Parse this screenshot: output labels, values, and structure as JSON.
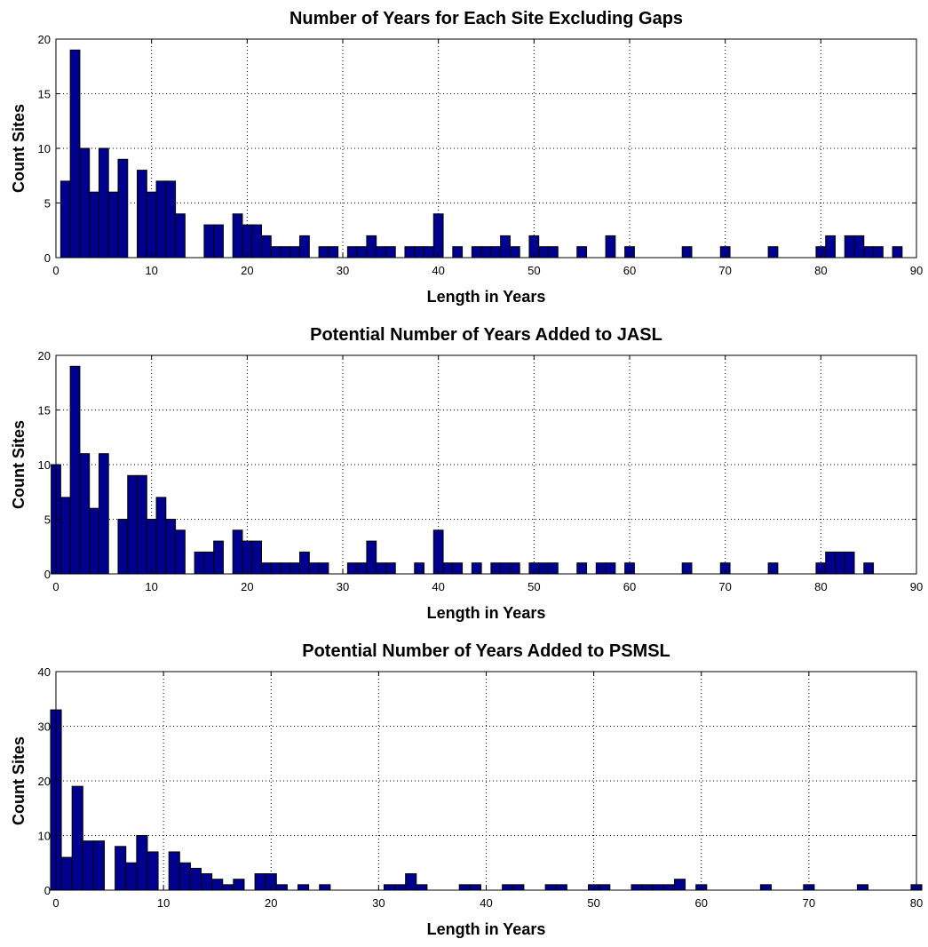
{
  "chart_data": [
    {
      "type": "bar",
      "title": "Number of Years for Each Site Excluding Gaps",
      "xlabel": "Length in Years",
      "ylabel": "Count Sites",
      "xlim": [
        0,
        90
      ],
      "ylim": [
        0,
        20
      ],
      "xticks": [
        "0",
        "10",
        "20",
        "30",
        "40",
        "50",
        "60",
        "70",
        "80",
        "90"
      ],
      "yticks": [
        "0",
        "5",
        "10",
        "15",
        "20"
      ],
      "grid": true,
      "bar_color": "#00008f",
      "x": [
        1,
        2,
        3,
        4,
        5,
        6,
        7,
        8,
        9,
        10,
        11,
        12,
        13,
        15,
        16,
        17,
        19,
        20,
        21,
        22,
        23,
        24,
        25,
        26,
        28,
        29,
        31,
        32,
        33,
        34,
        35,
        37,
        38,
        39,
        40,
        42,
        44,
        45,
        46,
        47,
        48,
        50,
        51,
        52,
        55,
        58,
        60,
        66,
        70,
        75,
        80,
        81,
        82,
        83,
        84,
        85,
        86,
        88
      ],
      "values": [
        7,
        19,
        10,
        6,
        10,
        6,
        9,
        0,
        8,
        6,
        7,
        7,
        4,
        0,
        3,
        3,
        4,
        3,
        3,
        2,
        1,
        1,
        1,
        2,
        1,
        1,
        1,
        1,
        2,
        1,
        1,
        1,
        1,
        1,
        4,
        1,
        1,
        1,
        1,
        2,
        1,
        2,
        1,
        1,
        1,
        2,
        1,
        1,
        1,
        1,
        1,
        2,
        0,
        2,
        2,
        1,
        1,
        1
      ]
    },
    {
      "type": "bar",
      "title": "Potential Number of Years Added to JASL",
      "xlabel": "Length in Years",
      "ylabel": "Count Sites",
      "xlim": [
        0,
        90
      ],
      "ylim": [
        0,
        20
      ],
      "xticks": [
        "0",
        "10",
        "20",
        "30",
        "40",
        "50",
        "60",
        "70",
        "80",
        "90"
      ],
      "yticks": [
        "0",
        "5",
        "10",
        "15",
        "20"
      ],
      "grid": true,
      "bar_color": "#00008f",
      "x": [
        0,
        1,
        2,
        3,
        4,
        5,
        7,
        8,
        9,
        10,
        11,
        12,
        13,
        15,
        16,
        17,
        19,
        20,
        21,
        22,
        23,
        24,
        25,
        26,
        27,
        28,
        31,
        32,
        33,
        34,
        35,
        38,
        40,
        41,
        42,
        44,
        46,
        47,
        48,
        50,
        51,
        52,
        55,
        57,
        58,
        60,
        66,
        70,
        75,
        80,
        81,
        82,
        83,
        85
      ],
      "values": [
        10,
        7,
        19,
        11,
        6,
        11,
        5,
        9,
        9,
        5,
        7,
        5,
        4,
        2,
        2,
        3,
        4,
        3,
        3,
        1,
        1,
        1,
        1,
        2,
        1,
        1,
        1,
        1,
        3,
        1,
        1,
        1,
        4,
        1,
        1,
        1,
        1,
        1,
        1,
        1,
        1,
        1,
        1,
        1,
        1,
        1,
        1,
        1,
        1,
        1,
        2,
        2,
        2,
        1
      ]
    },
    {
      "type": "bar",
      "title": "Potential Number of Years Added to PSMSL",
      "xlabel": "Length in Years",
      "ylabel": "Count Sites",
      "xlim": [
        0,
        80
      ],
      "ylim": [
        0,
        40
      ],
      "xticks": [
        "0",
        "10",
        "20",
        "30",
        "40",
        "50",
        "60",
        "70",
        "80"
      ],
      "yticks": [
        "0",
        "10",
        "20",
        "30",
        "40"
      ],
      "grid": true,
      "bar_color": "#00008f",
      "x": [
        0,
        1,
        2,
        3,
        4,
        5,
        6,
        7,
        8,
        9,
        10,
        11,
        12,
        13,
        14,
        15,
        16,
        17,
        19,
        20,
        21,
        23,
        25,
        31,
        32,
        33,
        34,
        38,
        39,
        42,
        43,
        46,
        47,
        50,
        51,
        54,
        55,
        56,
        57,
        58,
        60,
        66,
        70,
        75,
        80
      ],
      "values": [
        33,
        6,
        19,
        9,
        9,
        0,
        8,
        5,
        10,
        7,
        0,
        7,
        5,
        4,
        3,
        2,
        1,
        2,
        3,
        3,
        1,
        1,
        1,
        1,
        1,
        3,
        1,
        1,
        1,
        1,
        1,
        1,
        1,
        1,
        1,
        1,
        1,
        1,
        1,
        2,
        1,
        1,
        1,
        1,
        1
      ]
    }
  ]
}
